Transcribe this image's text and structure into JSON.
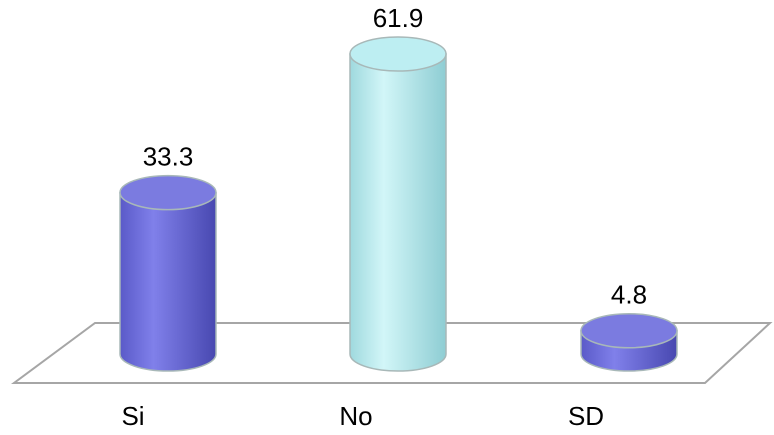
{
  "chart_data": {
    "type": "bar",
    "style": "3d-cylinder",
    "categories": [
      "Si",
      "No",
      "SD"
    ],
    "values": [
      33.3,
      61.9,
      4.8
    ],
    "data_labels": [
      "33.3",
      "61.9",
      "4.8"
    ],
    "colors": [
      "#7B7BE0",
      "#BDEEF2",
      "#7B7BE0"
    ],
    "ylim": [
      0,
      61.9
    ],
    "grid": false,
    "legend": "none"
  }
}
